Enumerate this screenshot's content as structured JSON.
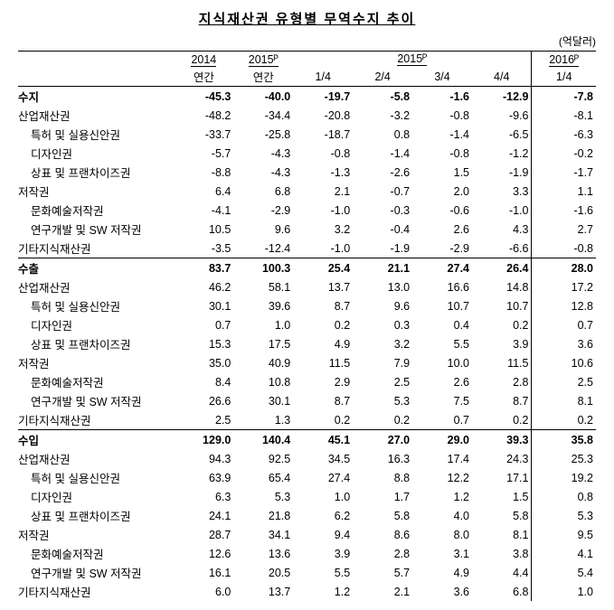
{
  "title": "지식재산권 유형별 무역수지 추이",
  "unit_label": "(억달러)",
  "header": {
    "groups": [
      "2014",
      "2015ᴾ",
      "2015ᴾ",
      "2016ᴾ"
    ],
    "subs": [
      "연간",
      "연간",
      "1/4",
      "2/4",
      "3/4",
      "4/4",
      "1/4"
    ]
  },
  "rows": [
    {
      "section": true,
      "lvl": 0,
      "label": "수지",
      "v": [
        "-45.3",
        "-40.0",
        "-19.7",
        "-5.8",
        "-1.6",
        "-12.9",
        "-7.8"
      ]
    },
    {
      "lvl": 0,
      "label": "산업재산권",
      "v": [
        "-48.2",
        "-34.4",
        "-20.8",
        "-3.2",
        "-0.8",
        "-9.6",
        "-8.1"
      ]
    },
    {
      "lvl": 1,
      "label": "특허 및 실용신안권",
      "v": [
        "-33.7",
        "-25.8",
        "-18.7",
        "0.8",
        "-1.4",
        "-6.5",
        "-6.3"
      ]
    },
    {
      "lvl": 1,
      "label": "디자인권",
      "v": [
        "-5.7",
        "-4.3",
        "-0.8",
        "-1.4",
        "-0.8",
        "-1.2",
        "-0.2"
      ]
    },
    {
      "lvl": 1,
      "label": "상표 및 프랜차이즈권",
      "v": [
        "-8.8",
        "-4.3",
        "-1.3",
        "-2.6",
        "1.5",
        "-1.9",
        "-1.7"
      ]
    },
    {
      "lvl": 0,
      "label": "저작권",
      "v": [
        "6.4",
        "6.8",
        "2.1",
        "-0.7",
        "2.0",
        "3.3",
        "1.1"
      ]
    },
    {
      "lvl": 1,
      "label": "문화예술저작권",
      "v": [
        "-4.1",
        "-2.9",
        "-1.0",
        "-0.3",
        "-0.6",
        "-1.0",
        "-1.6"
      ]
    },
    {
      "lvl": 1,
      "label": "연구개발 및 SW 저작권",
      "v": [
        "10.5",
        "9.6",
        "3.2",
        "-0.4",
        "2.6",
        "4.3",
        "2.7"
      ]
    },
    {
      "lvl": 0,
      "label": "기타지식재산권",
      "v": [
        "-3.5",
        "-12.4",
        "-1.0",
        "-1.9",
        "-2.9",
        "-6.6",
        "-0.8"
      ]
    },
    {
      "section": true,
      "lvl": 0,
      "label": "수출",
      "v": [
        "83.7",
        "100.3",
        "25.4",
        "21.1",
        "27.4",
        "26.4",
        "28.0"
      ]
    },
    {
      "lvl": 0,
      "label": "산업재산권",
      "v": [
        "46.2",
        "58.1",
        "13.7",
        "13.0",
        "16.6",
        "14.8",
        "17.2"
      ]
    },
    {
      "lvl": 1,
      "label": "특허 및 실용신안권",
      "v": [
        "30.1",
        "39.6",
        "8.7",
        "9.6",
        "10.7",
        "10.7",
        "12.8"
      ]
    },
    {
      "lvl": 1,
      "label": "디자인권",
      "v": [
        "0.7",
        "1.0",
        "0.2",
        "0.3",
        "0.4",
        "0.2",
        "0.7"
      ]
    },
    {
      "lvl": 1,
      "label": "상표 및 프랜차이즈권",
      "v": [
        "15.3",
        "17.5",
        "4.9",
        "3.2",
        "5.5",
        "3.9",
        "3.6"
      ]
    },
    {
      "lvl": 0,
      "label": "저작권",
      "v": [
        "35.0",
        "40.9",
        "11.5",
        "7.9",
        "10.0",
        "11.5",
        "10.6"
      ]
    },
    {
      "lvl": 1,
      "label": "문화예술저작권",
      "v": [
        "8.4",
        "10.8",
        "2.9",
        "2.5",
        "2.6",
        "2.8",
        "2.5"
      ]
    },
    {
      "lvl": 1,
      "label": "연구개발 및 SW 저작권",
      "v": [
        "26.6",
        "30.1",
        "8.7",
        "5.3",
        "7.5",
        "8.7",
        "8.1"
      ]
    },
    {
      "lvl": 0,
      "label": "기타지식재산권",
      "v": [
        "2.5",
        "1.3",
        "0.2",
        "0.2",
        "0.7",
        "0.2",
        "0.2"
      ]
    },
    {
      "section": true,
      "lvl": 0,
      "label": "수입",
      "v": [
        "129.0",
        "140.4",
        "45.1",
        "27.0",
        "29.0",
        "39.3",
        "35.8"
      ]
    },
    {
      "lvl": 0,
      "label": "산업재산권",
      "v": [
        "94.3",
        "92.5",
        "34.5",
        "16.3",
        "17.4",
        "24.3",
        "25.3"
      ]
    },
    {
      "lvl": 1,
      "label": "특허 및 실용신안권",
      "v": [
        "63.9",
        "65.4",
        "27.4",
        "8.8",
        "12.2",
        "17.1",
        "19.2"
      ]
    },
    {
      "lvl": 1,
      "label": "디자인권",
      "v": [
        "6.3",
        "5.3",
        "1.0",
        "1.7",
        "1.2",
        "1.5",
        "0.8"
      ]
    },
    {
      "lvl": 1,
      "label": "상표 및 프랜차이즈권",
      "v": [
        "24.1",
        "21.8",
        "6.2",
        "5.8",
        "4.0",
        "5.8",
        "5.3"
      ]
    },
    {
      "lvl": 0,
      "label": "저작권",
      "v": [
        "28.7",
        "34.1",
        "9.4",
        "8.6",
        "8.0",
        "8.1",
        "9.5"
      ]
    },
    {
      "lvl": 1,
      "label": "문화예술저작권",
      "v": [
        "12.6",
        "13.6",
        "3.9",
        "2.8",
        "3.1",
        "3.8",
        "4.1"
      ]
    },
    {
      "lvl": 1,
      "label": "연구개발 및 SW 저작권",
      "v": [
        "16.1",
        "20.5",
        "5.5",
        "5.7",
        "4.9",
        "4.4",
        "5.4"
      ]
    },
    {
      "lvl": 0,
      "label": "기타지식재산권",
      "v": [
        "6.0",
        "13.7",
        "1.2",
        "2.1",
        "3.6",
        "6.8",
        "1.0"
      ]
    }
  ]
}
